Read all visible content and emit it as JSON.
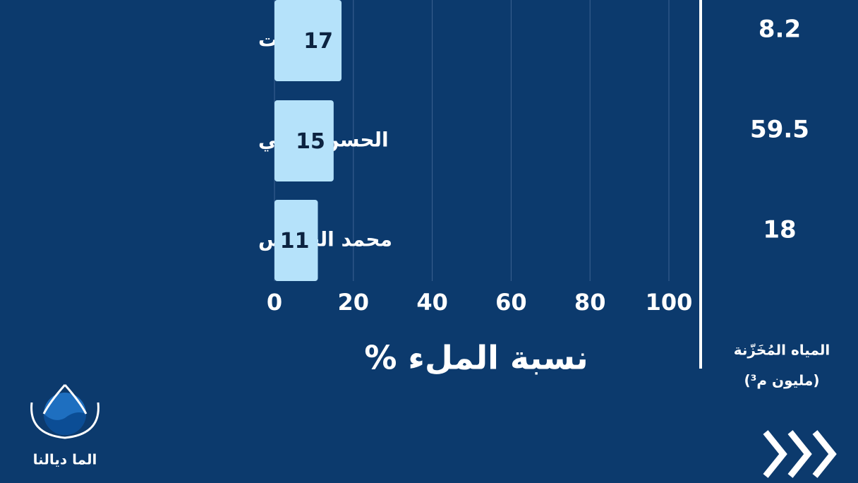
{
  "chart_data": {
    "type": "hbar",
    "categories": [
      "تمالوت",
      "الحسن الثاني",
      "محمد الخامس"
    ],
    "values": [
      17,
      15,
      11
    ],
    "color": "#b5e2fa",
    "xlim": [
      0,
      100
    ],
    "xticks": [
      0,
      20,
      40,
      60,
      80,
      100
    ],
    "grid": true,
    "x_label": "نسبة الملء %",
    "side_column": {
      "title": "المياه المُخَزّنة",
      "subtitle": "(مليون م³)",
      "values": [
        "8.2",
        "59.5",
        "18"
      ]
    }
  },
  "brand": "الما ديالنا"
}
